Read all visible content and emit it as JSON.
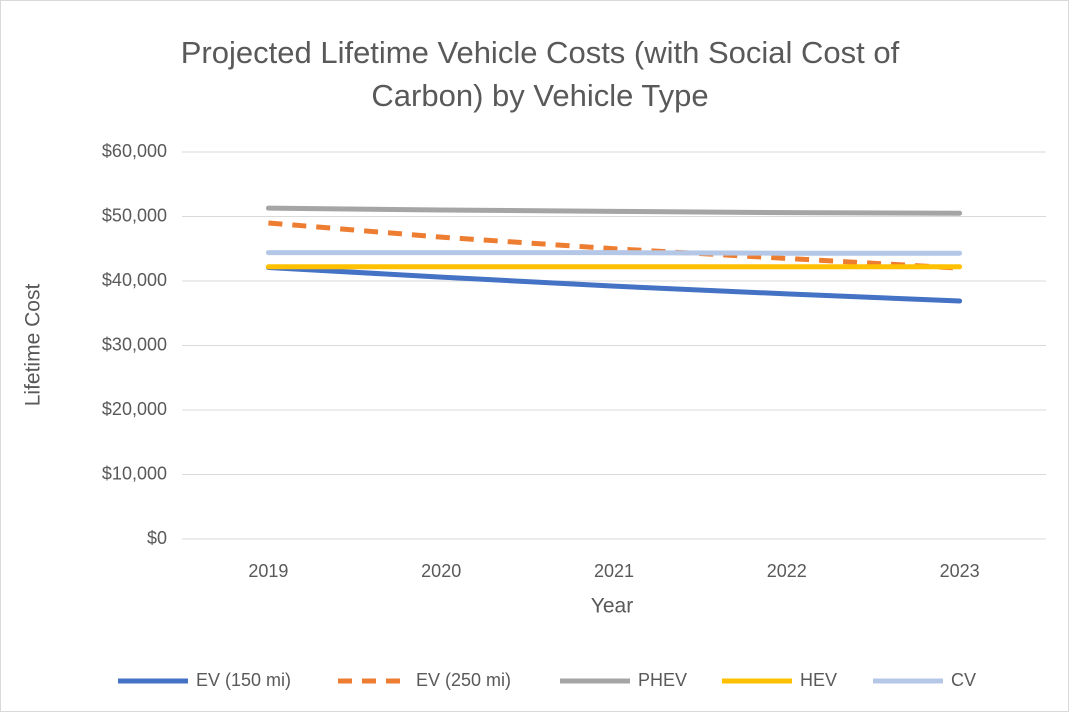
{
  "chart_data": {
    "type": "line",
    "title": [
      "Projected Lifetime Vehicle Costs (with Social Cost of",
      "Carbon) by Vehicle Type"
    ],
    "x_label": "Year",
    "y_label": "Lifetime Cost",
    "categories": [
      "2019",
      "2020",
      "2021",
      "2022",
      "2023"
    ],
    "series": [
      {
        "name": "EV (150 mi)",
        "color": "#4472c4",
        "values": [
          42100,
          40600,
          39200,
          38000,
          36900
        ]
      },
      {
        "name": "EV (250 mi)",
        "color": "#ed7d31",
        "dashed": true,
        "values": [
          49000,
          46800,
          45000,
          43500,
          42000
        ]
      },
      {
        "name": "PHEV",
        "color": "#a5a5a5",
        "values": [
          51300,
          51000,
          50800,
          50600,
          50500
        ]
      },
      {
        "name": "HEV",
        "color": "#ffc000",
        "values": [
          42200,
          42200,
          42200,
          42200,
          42200
        ]
      },
      {
        "name": "CV",
        "color": "#b4c7e7",
        "values": [
          44400,
          44400,
          44400,
          44300,
          44300
        ]
      }
    ],
    "ylim": [
      0,
      60000
    ],
    "yticks": [
      {
        "value": 0,
        "label": "$0"
      },
      {
        "value": 10000,
        "label": "$10,000"
      },
      {
        "value": 20000,
        "label": "$20,000"
      },
      {
        "value": 30000,
        "label": "$30,000"
      },
      {
        "value": 40000,
        "label": "$40,000"
      },
      {
        "value": 50000,
        "label": "$50,000"
      },
      {
        "value": 60000,
        "label": "$60,000"
      }
    ],
    "grid": true,
    "legend": "bottom"
  }
}
